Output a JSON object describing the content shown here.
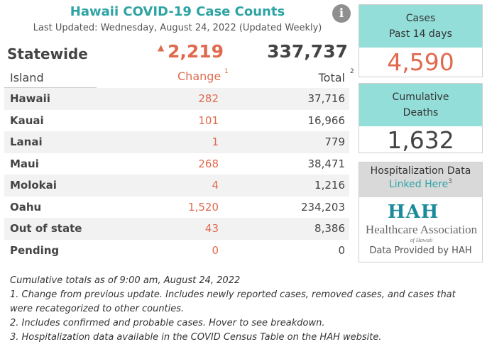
{
  "header": {
    "title": "Hawaii COVID-19 Case Counts",
    "last_updated": "Last Updated: Wednesday, August 24, 2022 (Updated Weekly)",
    "info_icon": "info-icon"
  },
  "statewide": {
    "label": "Statewide",
    "change": "2,219",
    "change_arrow": "▲",
    "total": "337,737"
  },
  "columns": {
    "island": "Island",
    "change": "Change",
    "change_sup": "1",
    "total": "Total",
    "total_sup": "2"
  },
  "rows": [
    {
      "name": "Hawaii",
      "change": "282",
      "total": "37,716"
    },
    {
      "name": "Kauai",
      "change": "101",
      "total": "16,966"
    },
    {
      "name": "Lanai",
      "change": "1",
      "total": "779"
    },
    {
      "name": "Maui",
      "change": "268",
      "total": "38,471"
    },
    {
      "name": "Molokai",
      "change": "4",
      "total": "1,216"
    },
    {
      "name": "Oahu",
      "change": "1,520",
      "total": "234,203"
    },
    {
      "name": "Out of state",
      "change": "43",
      "total": "8,386"
    },
    {
      "name": "Pending",
      "change": "0",
      "total": "0"
    }
  ],
  "notes": {
    "line1": "Cumulative totals as of 9:00 am, August 24, 2022",
    "line2": "1. Change from previous update. Includes newly reported cases, removed cases, and cases that were recategorized to other counties.",
    "line3": "2. Includes confirmed and probable cases. Hover to see breakdown.",
    "line4": "3. Hospitalization data available in the COVID Census Table on the HAH website."
  },
  "cards": {
    "cases": {
      "title_line1": "Cases",
      "title_line2": "Past 14 days",
      "value": "4,590"
    },
    "deaths": {
      "title_line1": "Cumulative",
      "title_line2": "Deaths",
      "value": "1,632"
    }
  },
  "hospitalization": {
    "title": "Hospitalization Data",
    "link": "Linked Here",
    "link_sup": "3",
    "logo_mark": "HAH",
    "logo_text": "Healthcare Association",
    "logo_sub": "of Hawaii",
    "credit": "Data Provided by HAH"
  },
  "colors": {
    "accent": "#2ea3a3",
    "change": "#e06a4e",
    "card_head": "#93ded8"
  }
}
